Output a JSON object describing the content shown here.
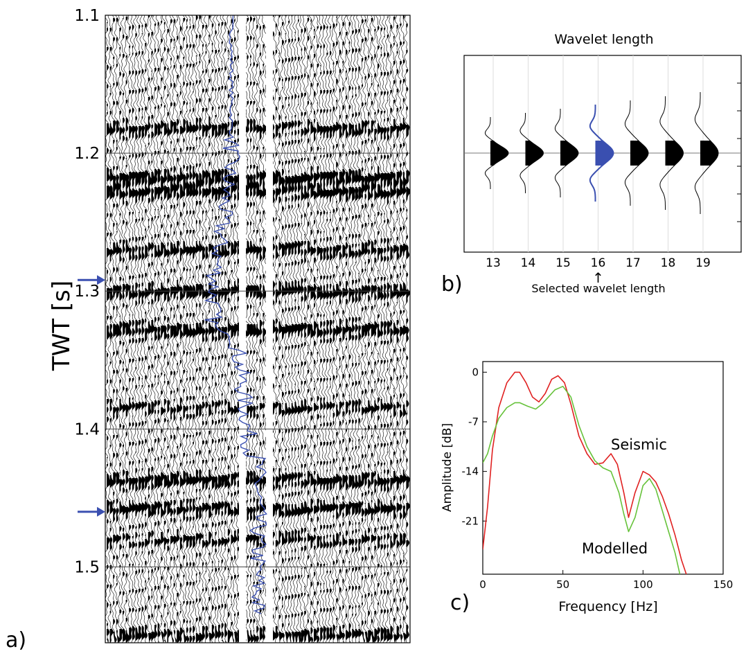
{
  "panels": {
    "a": {
      "tag": "a)",
      "ylabel": "TWT [s]",
      "yticks": [
        "1.1",
        "1.2",
        "1.3",
        "1.4",
        "1.5"
      ],
      "ylim": [
        1.1,
        1.555
      ],
      "marker_arrows_twt": [
        1.292,
        1.46
      ],
      "trace_color": "#000000",
      "log_color": "#3a4fb0"
    },
    "b": {
      "tag": "b)",
      "title": "Wavelet length",
      "categories": [
        "13",
        "14",
        "15",
        "16",
        "17",
        "18",
        "19"
      ],
      "selected": "16",
      "selected_label": "Selected wavelet length",
      "selected_color": "#3a4fb0",
      "arrow": "↑"
    },
    "c": {
      "tag": "c)",
      "xlabel": "Frequency [Hz]",
      "ylabel": "Amplitude [dB]",
      "xticks": [
        "0",
        "50",
        "100",
        "150"
      ],
      "yticks": [
        "0",
        "-7",
        "-14",
        "-21"
      ],
      "legend_seismic": "Seismic",
      "legend_modelled": "Modelled",
      "seismic_color": "#e02020",
      "modelled_color": "#66c23a"
    }
  },
  "chart_data": [
    {
      "type": "line",
      "panel": "c",
      "xlabel": "Frequency [Hz]",
      "ylabel": "Amplitude [dB]",
      "xlim": [
        0,
        150
      ],
      "ylim": [
        -28.5,
        1.5
      ],
      "series": [
        {
          "name": "Seismic",
          "x": [
            0,
            3,
            6,
            10,
            15,
            20,
            23,
            27,
            31,
            35,
            39,
            43,
            47,
            51,
            55,
            60,
            65,
            70,
            75,
            80,
            84,
            88,
            91,
            95,
            100,
            104,
            108,
            112,
            116,
            120,
            124,
            127
          ],
          "y": [
            -25,
            -19,
            -11,
            -5,
            -1.5,
            0,
            0,
            -1.5,
            -3.5,
            -4.2,
            -3,
            -1,
            -0.5,
            -1.5,
            -4.5,
            -9,
            -11.5,
            -13,
            -12.8,
            -11.5,
            -13,
            -17,
            -20.5,
            -17,
            -14,
            -14.5,
            -15.5,
            -17.5,
            -20,
            -23,
            -26.5,
            -28.5
          ]
        },
        {
          "name": "Modelled",
          "x": [
            0,
            3,
            6,
            10,
            15,
            20,
            23,
            28,
            33,
            37,
            41,
            45,
            50,
            55,
            60,
            65,
            70,
            75,
            80,
            85,
            88,
            91,
            95,
            100,
            104,
            108,
            112,
            116,
            120,
            123
          ],
          "y": [
            -12.8,
            -11.5,
            -9,
            -6.5,
            -5,
            -4.3,
            -4.3,
            -4.8,
            -5.2,
            -4.5,
            -3.5,
            -2.5,
            -2,
            -3.5,
            -7.5,
            -10.5,
            -12.5,
            -13.5,
            -14,
            -17,
            -20,
            -22.5,
            -20.5,
            -16,
            -15,
            -16.5,
            -19.5,
            -22.5,
            -25.5,
            -28.5
          ]
        }
      ]
    },
    {
      "type": "scatter",
      "panel": "b",
      "title": "Wavelet length",
      "categories": [
        "13",
        "14",
        "15",
        "16",
        "17",
        "18",
        "19"
      ],
      "selected": "16"
    },
    {
      "type": "line",
      "panel": "a",
      "ylabel": "TWT [s]",
      "ylim": [
        1.1,
        1.555
      ],
      "reflectors_twt": [
        1.182,
        1.218,
        1.228,
        1.27,
        1.3,
        1.328,
        1.385,
        1.437,
        1.458,
        1.48,
        1.55
      ]
    }
  ]
}
